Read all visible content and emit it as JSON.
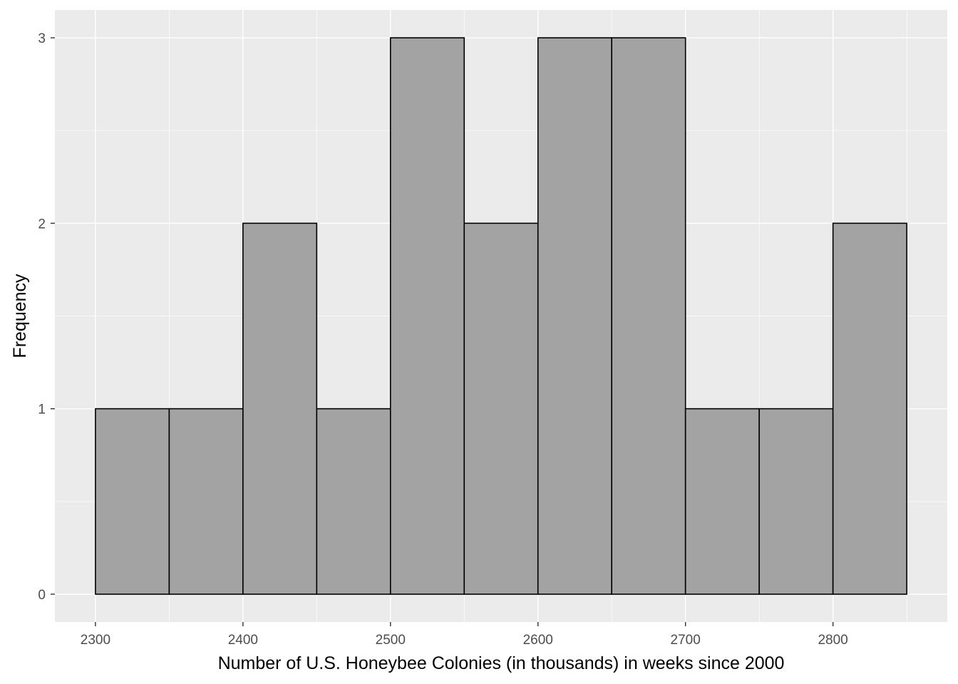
{
  "chart_data": {
    "type": "bar",
    "subtype": "histogram",
    "title": "",
    "xlabel": "Number of U.S. Honeybee Colonies (in thousands) in weeks since 2000",
    "ylabel": "Frequency",
    "bins": [
      {
        "start": 2300,
        "end": 2350,
        "count": 1
      },
      {
        "start": 2350,
        "end": 2400,
        "count": 1
      },
      {
        "start": 2400,
        "end": 2450,
        "count": 2
      },
      {
        "start": 2450,
        "end": 2500,
        "count": 1
      },
      {
        "start": 2500,
        "end": 2550,
        "count": 3
      },
      {
        "start": 2550,
        "end": 2600,
        "count": 2
      },
      {
        "start": 2600,
        "end": 2650,
        "count": 3
      },
      {
        "start": 2650,
        "end": 2700,
        "count": 3
      },
      {
        "start": 2700,
        "end": 2750,
        "count": 1
      },
      {
        "start": 2750,
        "end": 2800,
        "count": 1
      },
      {
        "start": 2800,
        "end": 2850,
        "count": 2
      }
    ],
    "xlim": [
      2272.5,
      2877.5
    ],
    "ylim": [
      -0.15,
      3.15
    ],
    "x_ticks": [
      2300,
      2400,
      2500,
      2600,
      2700,
      2800
    ],
    "x_tick_labels": [
      "2300",
      "2400",
      "2500",
      "2600",
      "2700",
      "2800"
    ],
    "y_ticks": [
      0,
      1,
      2,
      3
    ],
    "y_tick_labels": [
      "0",
      "1",
      "2",
      "3"
    ],
    "x_minor_gridlines": [
      2350,
      2450,
      2550,
      2650,
      2750,
      2850
    ],
    "y_minor_gridlines": [
      0.5,
      1.5,
      2.5
    ],
    "grid": true,
    "legend": "none",
    "colors": {
      "panel_background": "#ebebeb",
      "grid_major": "#ffffff",
      "bar_fill": "#a3a3a3",
      "bar_edge": "#000000",
      "tick_text": "#4d4d4d",
      "tick_mark": "#333333"
    }
  }
}
